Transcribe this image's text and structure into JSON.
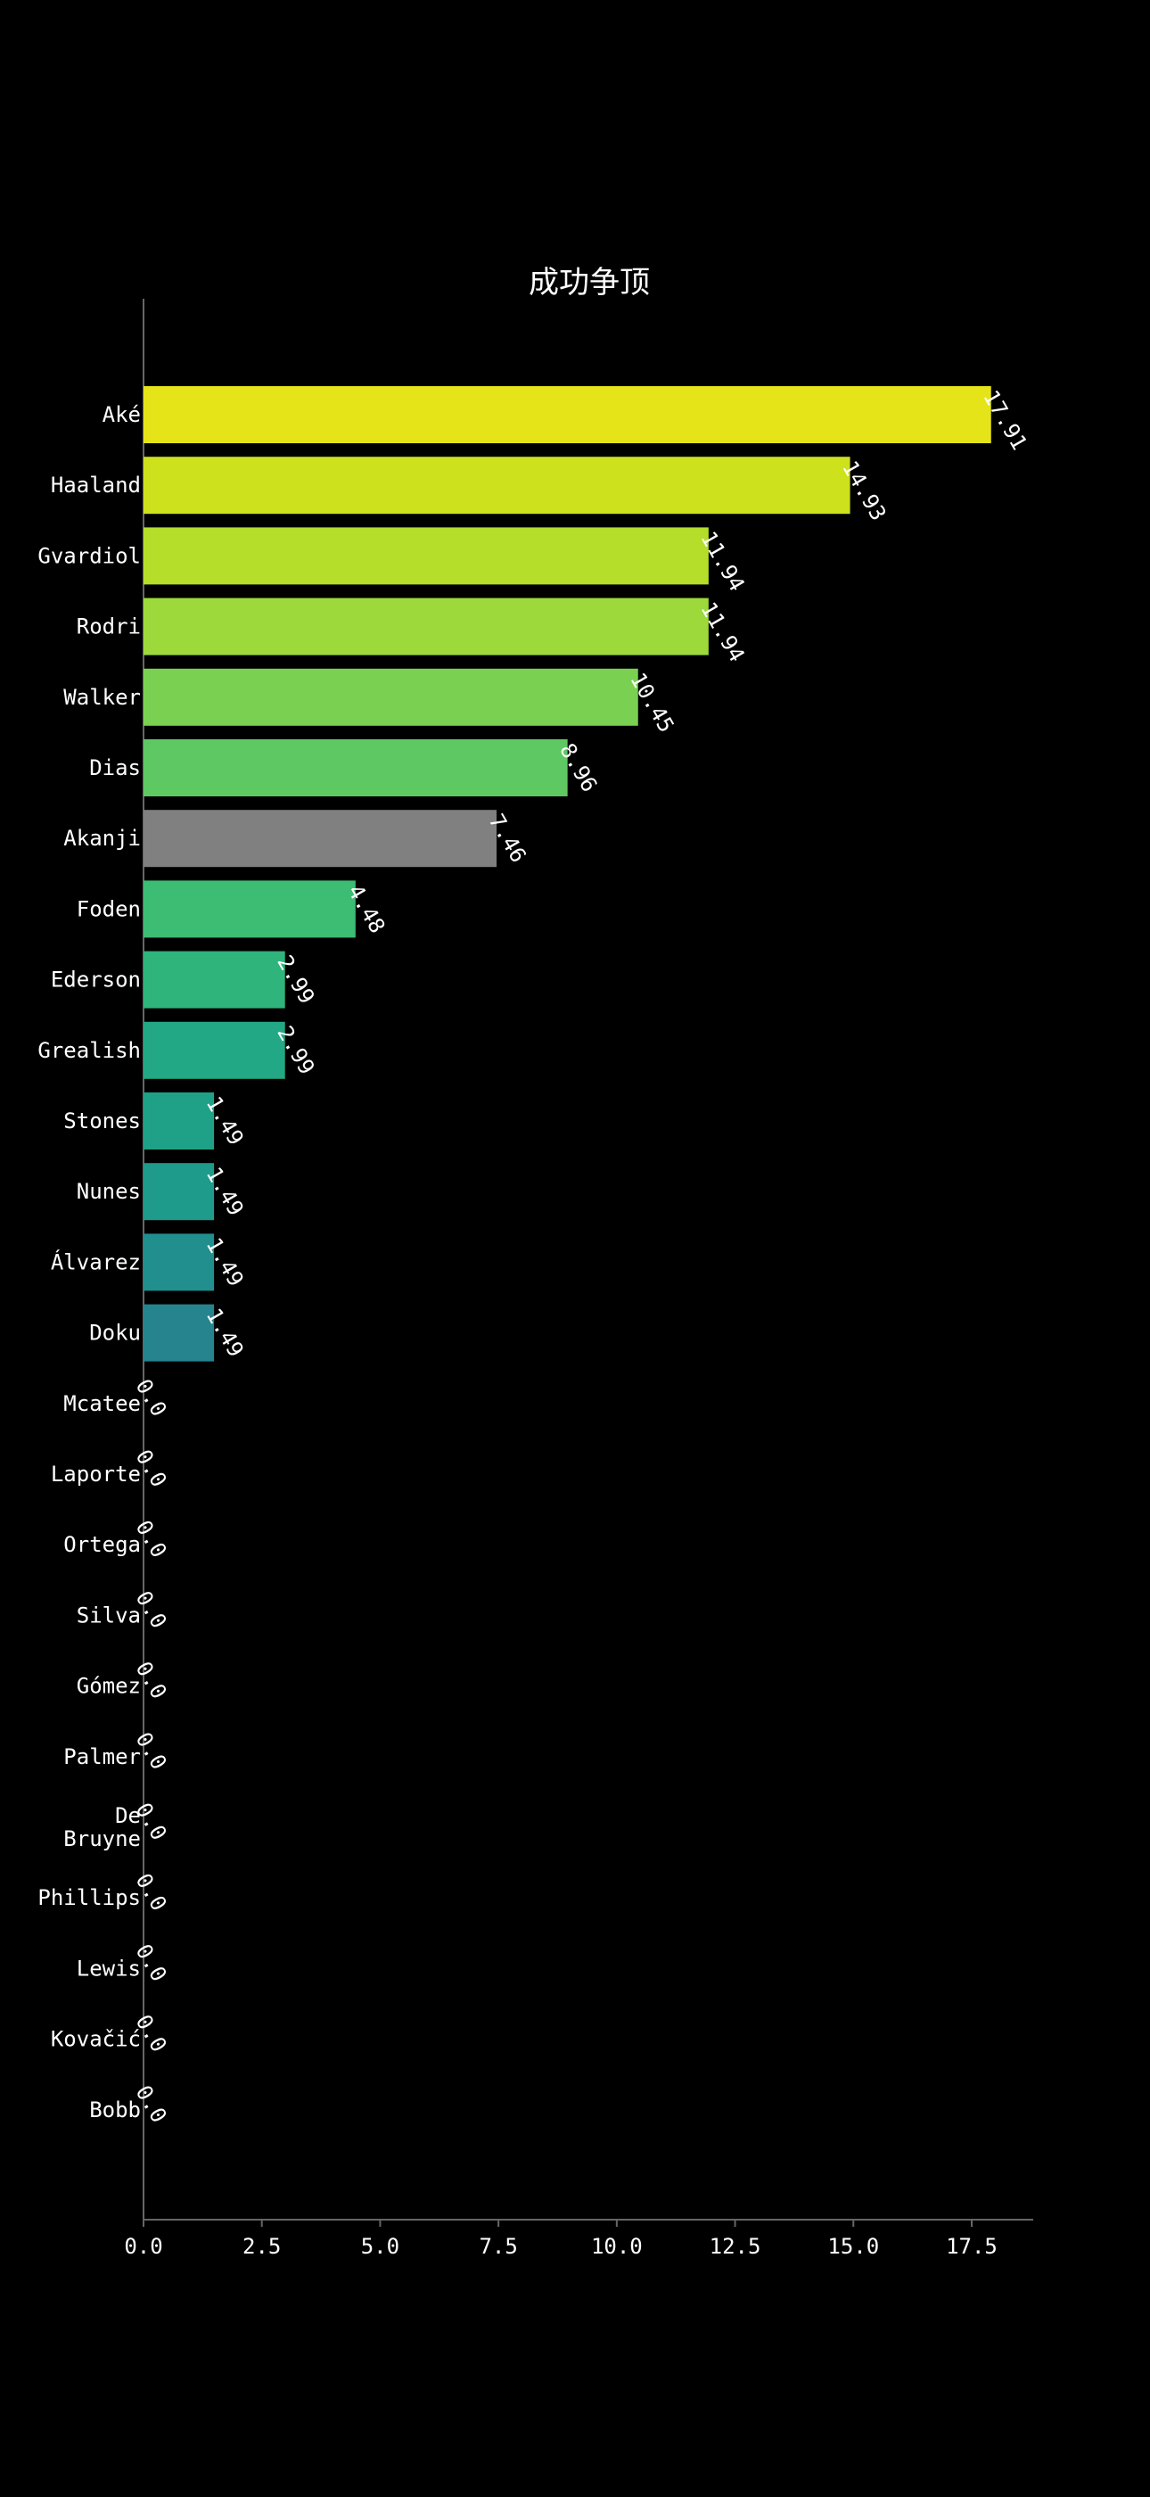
{
  "chart_data": {
    "type": "bar",
    "orientation": "horizontal",
    "title": "成功争顶",
    "xlabel": "",
    "ylabel": "",
    "xlim": [
      0,
      18.8
    ],
    "x_ticks": [
      "0.0",
      "2.5",
      "5.0",
      "7.5",
      "10.0",
      "12.5",
      "15.0",
      "17.5"
    ],
    "x_tick_values": [
      0,
      2.5,
      5.0,
      7.5,
      10.0,
      12.5,
      15.0,
      17.5
    ],
    "grid": false,
    "legend": "none",
    "categories": [
      "Aké",
      "Haaland",
      "Gvardiol",
      "Rodri",
      "Walker",
      "Dias",
      "Akanji",
      "Foden",
      "Ederson",
      "Grealish",
      "Stones",
      "Nunes",
      "Álvarez",
      "Doku",
      "Mcatee",
      "Laporte",
      "Ortega",
      "Silva",
      "Gómez",
      "Palmer",
      "De Bruyne",
      "Phillips",
      "Lewis",
      "Kovačić",
      "Bobb"
    ],
    "values": [
      17.91,
      14.93,
      11.94,
      11.94,
      10.45,
      8.96,
      7.46,
      4.48,
      2.99,
      2.99,
      1.49,
      1.49,
      1.49,
      1.49,
      0.0,
      0.0,
      0.0,
      0.0,
      0.0,
      0.0,
      0.0,
      0.0,
      0.0,
      0.0,
      0.0
    ],
    "value_labels": [
      "17.91",
      "14.93",
      "11.94",
      "11.94",
      "10.45",
      "8.96",
      "7.46",
      "4.48",
      "2.99",
      "2.99",
      "1.49",
      "1.49",
      "1.49",
      "1.49",
      "0.0",
      "0.0",
      "0.0",
      "0.0",
      "0.0",
      "0.0",
      "0.0",
      "0.0",
      "0.0",
      "0.0",
      "0.0"
    ],
    "colors": [
      "#e5e419",
      "#cde11d",
      "#b5de2b",
      "#9dd93b",
      "#7ad151",
      "#5ec962",
      "#808080",
      "#3dbc74",
      "#2fb47c",
      "#22a884",
      "#1fa187",
      "#1e9b8a",
      "#218f8d",
      "#25848e",
      "#2a788e",
      "#2f6c8e",
      "#355f8d",
      "#3b528b",
      "#424086",
      "#472f7d",
      "#482475",
      "#48186a",
      "#46075a",
      "#440154",
      "#440154"
    ],
    "axis_color": "#666666",
    "background": "#000000"
  }
}
